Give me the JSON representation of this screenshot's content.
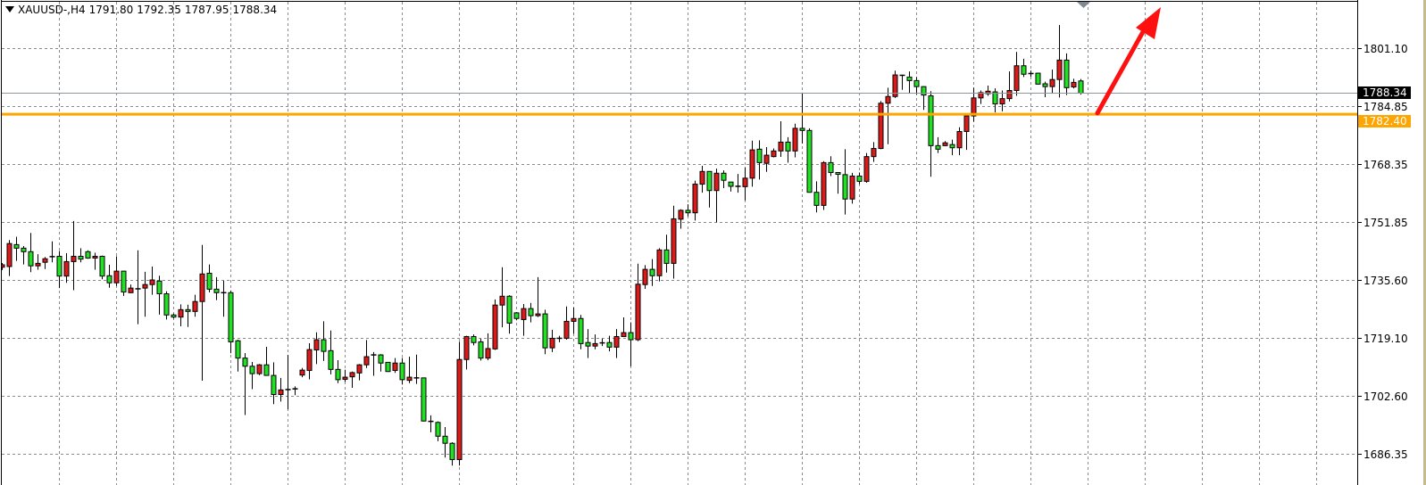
{
  "header": {
    "symbol": "XAUUSD-,H4",
    "open": "1791.80",
    "high": "1792.35",
    "low": "1787.95",
    "close": "1788.34"
  },
  "price_tags": {
    "bid": "1788.34",
    "level": "1782.40"
  },
  "chart_data": {
    "type": "candlestick",
    "title": "XAUUSD-,H4",
    "ylim": [
      1677.5,
      1814.7
    ],
    "y_ticks": [
      "1801.10",
      "1784.85",
      "1768.35",
      "1751.85",
      "1735.60",
      "1719.10",
      "1702.60",
      "1686.35"
    ],
    "grid": true,
    "bid_line": 1788.34,
    "horizontal_level": 1782.4,
    "colors": {
      "bull": "#dd1a1a",
      "bear": "#22e022",
      "outline": "#000000",
      "level": "#ffa500",
      "bid_line": "#8c959c",
      "arrow": "#ff1010"
    },
    "annotations": [
      {
        "type": "arrow",
        "direction": "up",
        "color": "#ff1010"
      }
    ],
    "candles_ohlc": [
      [
        1739.1,
        1740.3,
        1738.3,
        1739.8
      ],
      [
        1739.3,
        1746.8,
        1736.6,
        1745.8
      ],
      [
        1745.5,
        1747.7,
        1740.9,
        1744.5
      ],
      [
        1744.5,
        1745.1,
        1739.9,
        1743.5
      ],
      [
        1743.5,
        1748.8,
        1737.7,
        1739.5
      ],
      [
        1739.5,
        1742.8,
        1738.4,
        1740.2
      ],
      [
        1740.5,
        1742.0,
        1738.6,
        1741.5
      ],
      [
        1742.1,
        1746.4,
        1740.5,
        1742.0
      ],
      [
        1742.2,
        1743.7,
        1733.2,
        1736.6
      ],
      [
        1736.6,
        1743.1,
        1734.7,
        1740.7
      ],
      [
        1740.7,
        1752.2,
        1732.6,
        1742.2
      ],
      [
        1742.2,
        1744.5,
        1740.5,
        1741.4
      ],
      [
        1743.5,
        1743.9,
        1741.5,
        1741.7
      ],
      [
        1741.7,
        1743.2,
        1738.4,
        1742.2
      ],
      [
        1742.2,
        1742.4,
        1735.7,
        1736.6
      ],
      [
        1736.7,
        1739.8,
        1733.3,
        1734.7
      ],
      [
        1734.7,
        1742.2,
        1733.8,
        1738.0
      ],
      [
        1738.0,
        1738.0,
        1731.0,
        1732.1
      ],
      [
        1731.9,
        1734.2,
        1731.8,
        1733.2
      ],
      [
        1733.0,
        1743.9,
        1723.0,
        1732.9
      ],
      [
        1733.2,
        1737.8,
        1725.1,
        1734.2
      ],
      [
        1734.2,
        1739.3,
        1731.3,
        1735.5
      ],
      [
        1735.2,
        1736.7,
        1725.7,
        1731.6
      ],
      [
        1731.6,
        1732.3,
        1724.3,
        1725.6
      ],
      [
        1725.6,
        1726.0,
        1724.6,
        1725.0
      ],
      [
        1725.0,
        1728.6,
        1722.4,
        1727.1
      ],
      [
        1727.1,
        1728.5,
        1722.2,
        1726.6
      ],
      [
        1726.6,
        1731.3,
        1725.1,
        1729.4
      ],
      [
        1729.4,
        1745.4,
        1707.0,
        1737.2
      ],
      [
        1737.4,
        1739.9,
        1732.0,
        1732.9
      ],
      [
        1732.9,
        1736.3,
        1729.8,
        1731.9
      ],
      [
        1731.9,
        1735.3,
        1725.1,
        1731.8
      ],
      [
        1731.9,
        1732.5,
        1714.8,
        1718.0
      ],
      [
        1718.3,
        1718.6,
        1709.6,
        1713.4
      ],
      [
        1713.4,
        1714.8,
        1697.3,
        1711.1
      ],
      [
        1711.1,
        1712.3,
        1704.6,
        1709.0
      ],
      [
        1709.0,
        1711.7,
        1708.6,
        1711.5
      ],
      [
        1711.5,
        1716.6,
        1708.5,
        1708.5
      ],
      [
        1708.5,
        1712.2,
        1700.4,
        1703.1
      ],
      [
        1703.1,
        1707.8,
        1701.1,
        1704.4
      ],
      [
        1704.5,
        1714.3,
        1698.9,
        1704.5
      ],
      [
        1704.6,
        1705.4,
        1702.9,
        1704.7
      ],
      [
        1708.6,
        1710.6,
        1708.0,
        1710.0
      ],
      [
        1709.9,
        1717.6,
        1707.4,
        1715.8
      ],
      [
        1715.7,
        1720.7,
        1711.7,
        1718.6
      ],
      [
        1718.6,
        1723.8,
        1712.6,
        1715.3
      ],
      [
        1715.5,
        1721.2,
        1708.8,
        1710.2
      ],
      [
        1710.2,
        1712.8,
        1706.3,
        1707.3
      ],
      [
        1707.4,
        1710.1,
        1706.7,
        1708.0
      ],
      [
        1708.1,
        1709.6,
        1705.0,
        1709.3
      ],
      [
        1709.2,
        1711.7,
        1707.1,
        1711.5
      ],
      [
        1711.5,
        1718.5,
        1710.6,
        1713.8
      ],
      [
        1714.3,
        1715.1,
        1708.4,
        1714.2
      ],
      [
        1714.3,
        1714.5,
        1709.6,
        1712.0
      ],
      [
        1712.2,
        1712.3,
        1709.5,
        1709.6
      ],
      [
        1709.9,
        1713.4,
        1709.2,
        1712.0
      ],
      [
        1712.0,
        1713.4,
        1705.9,
        1707.3
      ],
      [
        1707.1,
        1713.8,
        1706.3,
        1708.0
      ],
      [
        1707.8,
        1714.4,
        1706.1,
        1707.7
      ],
      [
        1707.8,
        1707.9,
        1695.5,
        1695.6
      ],
      [
        1695.5,
        1697.2,
        1692.4,
        1695.4
      ],
      [
        1695.2,
        1695.5,
        1689.9,
        1691.3
      ],
      [
        1691.3,
        1693.9,
        1685.3,
        1689.3
      ],
      [
        1689.3,
        1689.6,
        1683.0,
        1684.7
      ],
      [
        1684.7,
        1718.0,
        1683.0,
        1713.0
      ],
      [
        1713.0,
        1719.7,
        1710.2,
        1719.5
      ],
      [
        1719.5,
        1720.1,
        1717.0,
        1717.8
      ],
      [
        1718.0,
        1718.9,
        1712.7,
        1713.4
      ],
      [
        1713.4,
        1720.4,
        1712.8,
        1716.1
      ],
      [
        1716.0,
        1730.0,
        1715.7,
        1728.4
      ],
      [
        1728.4,
        1739.1,
        1722.1,
        1730.9
      ],
      [
        1730.9,
        1731.2,
        1720.3,
        1723.3
      ],
      [
        1726.2,
        1726.4,
        1724.1,
        1724.6
      ],
      [
        1724.3,
        1728.7,
        1719.7,
        1727.4
      ],
      [
        1727.4,
        1729.0,
        1723.5,
        1725.4
      ],
      [
        1725.4,
        1736.3,
        1725.0,
        1725.9
      ],
      [
        1725.9,
        1727.1,
        1714.5,
        1716.3
      ],
      [
        1716.3,
        1721.4,
        1715.1,
        1719.0
      ],
      [
        1719.0,
        1719.7,
        1717.9,
        1719.0
      ],
      [
        1719.0,
        1728.0,
        1718.6,
        1723.8
      ],
      [
        1723.8,
        1727.7,
        1720.3,
        1724.6
      ],
      [
        1724.6,
        1725.6,
        1715.9,
        1717.5
      ],
      [
        1717.8,
        1721.6,
        1713.4,
        1716.8
      ],
      [
        1716.8,
        1720.1,
        1715.9,
        1717.5
      ],
      [
        1717.7,
        1718.9,
        1716.8,
        1717.6
      ],
      [
        1717.8,
        1719.7,
        1715.3,
        1716.5
      ],
      [
        1716.5,
        1721.6,
        1713.4,
        1719.5
      ],
      [
        1719.5,
        1724.9,
        1719.5,
        1720.6
      ],
      [
        1720.6,
        1723.5,
        1711.1,
        1718.6
      ],
      [
        1718.6,
        1740.1,
        1718.2,
        1734.3
      ],
      [
        1734.2,
        1739.7,
        1733.0,
        1738.5
      ],
      [
        1738.5,
        1741.4,
        1733.8,
        1736.7
      ],
      [
        1736.7,
        1744.5,
        1735.1,
        1744.0
      ],
      [
        1744.0,
        1748.3,
        1737.6,
        1740.2
      ],
      [
        1740.2,
        1756.5,
        1735.9,
        1752.8
      ],
      [
        1752.7,
        1755.5,
        1750.0,
        1755.2
      ],
      [
        1755.2,
        1756.9,
        1753.5,
        1754.5
      ],
      [
        1754.5,
        1763.6,
        1752.3,
        1762.6
      ],
      [
        1762.6,
        1767.8,
        1760.2,
        1766.2
      ],
      [
        1766.2,
        1766.2,
        1756.0,
        1760.8
      ],
      [
        1760.8,
        1767.0,
        1751.8,
        1765.7
      ],
      [
        1765.7,
        1766.5,
        1761.5,
        1763.7
      ],
      [
        1763.2,
        1763.2,
        1760.5,
        1762.0
      ],
      [
        1762.0,
        1765.5,
        1760.2,
        1762.0
      ],
      [
        1761.9,
        1767.4,
        1758.0,
        1764.3
      ],
      [
        1764.3,
        1774.9,
        1761.9,
        1772.3
      ],
      [
        1772.5,
        1775.0,
        1763.9,
        1768.7
      ],
      [
        1768.5,
        1773.1,
        1766.1,
        1770.8
      ],
      [
        1770.4,
        1772.7,
        1770.2,
        1772.0
      ],
      [
        1772.0,
        1780.4,
        1770.3,
        1774.5
      ],
      [
        1774.5,
        1775.9,
        1768.7,
        1772.0
      ],
      [
        1772.0,
        1779.7,
        1770.2,
        1778.4
      ],
      [
        1778.4,
        1788.5,
        1774.1,
        1777.8
      ],
      [
        1777.8,
        1778.4,
        1760.3,
        1760.3
      ],
      [
        1760.3,
        1763.4,
        1754.6,
        1756.6
      ],
      [
        1756.6,
        1769.1,
        1755.3,
        1768.7
      ],
      [
        1768.7,
        1770.5,
        1764.9,
        1765.9
      ],
      [
        1765.9,
        1765.9,
        1759.9,
        1765.4
      ],
      [
        1765.3,
        1772.5,
        1754.0,
        1758.4
      ],
      [
        1758.4,
        1765.8,
        1757.1,
        1764.9
      ],
      [
        1764.9,
        1765.9,
        1762.6,
        1763.4
      ],
      [
        1763.4,
        1771.4,
        1763.0,
        1770.4
      ],
      [
        1770.4,
        1774.5,
        1768.9,
        1772.7
      ],
      [
        1772.7,
        1786.1,
        1772.5,
        1785.5
      ],
      [
        1785.5,
        1789.9,
        1773.9,
        1787.4
      ],
      [
        1787.4,
        1794.7,
        1787.0,
        1793.5
      ],
      [
        1793.4,
        1793.5,
        1789.3,
        1793.4
      ],
      [
        1792.9,
        1794.5,
        1788.2,
        1791.9
      ],
      [
        1791.9,
        1792.9,
        1788.0,
        1790.2
      ],
      [
        1790.2,
        1790.3,
        1783.6,
        1787.8
      ],
      [
        1787.6,
        1788.9,
        1764.7,
        1773.5
      ],
      [
        1773.5,
        1775.9,
        1771.4,
        1772.5
      ],
      [
        1773.5,
        1774.8,
        1773.4,
        1774.3
      ],
      [
        1773.8,
        1775.2,
        1770.8,
        1772.9
      ],
      [
        1772.9,
        1778.7,
        1770.8,
        1777.5
      ],
      [
        1777.5,
        1782.3,
        1772.3,
        1781.9
      ],
      [
        1781.9,
        1789.9,
        1780.3,
        1787.0
      ],
      [
        1787.0,
        1789.1,
        1785.3,
        1788.5
      ],
      [
        1788.2,
        1790.5,
        1787.6,
        1788.9
      ],
      [
        1788.7,
        1789.7,
        1782.9,
        1785.3
      ],
      [
        1785.3,
        1789.1,
        1783.2,
        1786.8
      ],
      [
        1786.8,
        1794.5,
        1786.0,
        1789.1
      ],
      [
        1789.1,
        1800.0,
        1787.6,
        1796.1
      ],
      [
        1796.1,
        1798.1,
        1792.9,
        1793.7
      ],
      [
        1793.9,
        1794.7,
        1793.0,
        1793.9
      ],
      [
        1794.0,
        1794.1,
        1790.8,
        1790.9
      ],
      [
        1791.0,
        1791.6,
        1787.2,
        1790.2
      ],
      [
        1790.2,
        1795.0,
        1788.2,
        1792.2
      ],
      [
        1792.2,
        1807.6,
        1787.1,
        1797.7
      ],
      [
        1797.7,
        1799.6,
        1787.8,
        1789.9
      ],
      [
        1790.1,
        1792.4,
        1789.7,
        1791.4
      ],
      [
        1791.8,
        1792.35,
        1787.95,
        1788.34
      ]
    ]
  }
}
